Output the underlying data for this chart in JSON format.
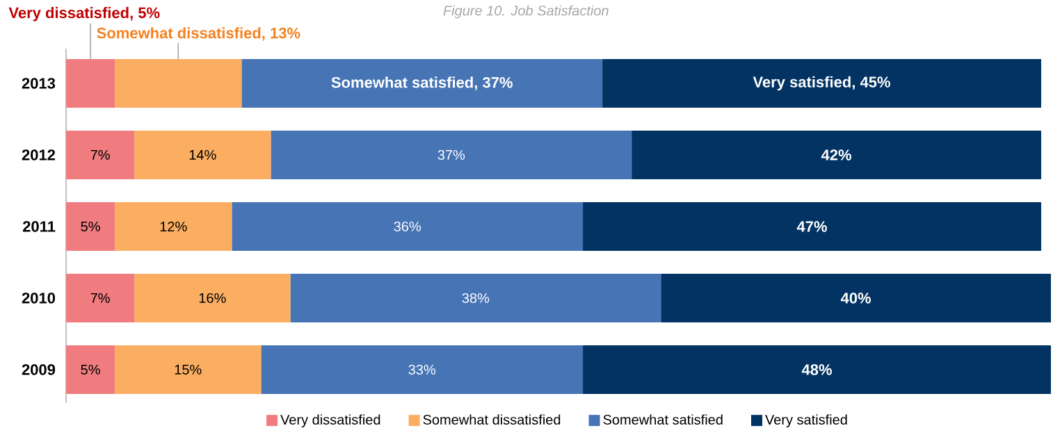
{
  "chart_data": {
    "type": "bar",
    "orientation": "horizontal",
    "stacked": true,
    "title": "Figure 10. Job Satisfaction",
    "categories": [
      "2013",
      "2012",
      "2011",
      "2010",
      "2009"
    ],
    "series": [
      {
        "name": "Very dissatisfied",
        "color": "#f07c80",
        "values": [
          5,
          7,
          5,
          7,
          5
        ],
        "value_labels": [
          "Very dissatisfied, 5%",
          "7%",
          "5%",
          "7%",
          "5%"
        ]
      },
      {
        "name": "Somewhat dissatisfied",
        "color": "#fbae62",
        "values": [
          13,
          14,
          12,
          16,
          15
        ],
        "value_labels": [
          "Somewhat dissatisfied, 13%",
          "14%",
          "12%",
          "16%",
          "15%"
        ]
      },
      {
        "name": "Somewhat satisfied",
        "color": "#4674b4",
        "values": [
          37,
          37,
          36,
          38,
          33
        ],
        "value_labels": [
          "Somewhat satisfied, 37%",
          "37%",
          "36%",
          "38%",
          "33%"
        ]
      },
      {
        "name": "Very satisfied",
        "color": "#033363",
        "values": [
          45,
          42,
          47,
          40,
          48
        ],
        "value_labels": [
          "Very satisfied, 45%",
          "42%",
          "47%",
          "40%",
          "48%"
        ]
      }
    ],
    "legend": "bottom"
  }
}
